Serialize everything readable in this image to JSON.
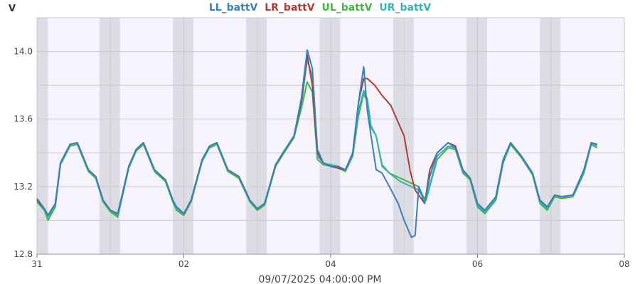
{
  "chart_data": {
    "type": "line",
    "title": "",
    "ylabel": "V",
    "xlabel": "09/07/2025 04:00:00 PM",
    "ylim": [
      12.8,
      14.2
    ],
    "xlim": [
      0,
      8
    ],
    "y_ticks": [
      {
        "v": 12.8,
        "label": "12.8"
      },
      {
        "v": 13.2,
        "label": "13.2"
      },
      {
        "v": 13.6,
        "label": "13.6"
      },
      {
        "v": 14.0,
        "label": "14.0"
      }
    ],
    "x_ticks": [
      {
        "v": 0,
        "label": "31"
      },
      {
        "v": 2,
        "label": "02"
      },
      {
        "v": 4,
        "label": "04"
      },
      {
        "v": 6,
        "label": "06"
      },
      {
        "v": 8,
        "label": "08"
      }
    ],
    "grid": true,
    "legend_position": "top",
    "night_bands": [
      [
        0.0,
        0.15
      ],
      [
        0.85,
        1.13
      ],
      [
        1.85,
        2.13
      ],
      [
        2.85,
        3.13
      ],
      [
        3.85,
        4.13
      ],
      [
        4.85,
        5.13
      ],
      [
        5.85,
        6.13
      ],
      [
        6.85,
        7.13
      ]
    ],
    "series": [
      {
        "name": "LL_battV",
        "color": "#3a7fbf",
        "x": [
          0,
          0.1,
          0.15,
          0.25,
          0.32,
          0.45,
          0.55,
          0.7,
          0.8,
          0.9,
          1.0,
          1.1,
          1.25,
          1.35,
          1.45,
          1.6,
          1.75,
          1.85,
          1.9,
          2.0,
          2.1,
          2.25,
          2.35,
          2.45,
          2.6,
          2.75,
          2.9,
          3.0,
          3.1,
          3.25,
          3.35,
          3.5,
          3.6,
          3.68,
          3.75,
          3.82,
          3.9,
          4.0,
          4.1,
          4.2,
          4.3,
          4.38,
          4.45,
          4.5,
          4.55,
          4.62,
          4.7,
          4.8,
          4.92,
          5.0,
          5.1,
          5.15,
          5.2,
          5.28,
          5.35,
          5.45,
          5.6,
          5.7,
          5.8,
          5.9,
          6.0,
          6.1,
          6.25,
          6.35,
          6.45,
          6.6,
          6.75,
          6.85,
          6.95,
          7.05,
          7.15,
          7.3,
          7.45,
          7.55,
          7.63
        ],
        "y": [
          13.13,
          13.07,
          13.03,
          13.1,
          13.34,
          13.45,
          13.46,
          13.3,
          13.26,
          13.12,
          13.06,
          13.04,
          13.32,
          13.42,
          13.46,
          13.3,
          13.24,
          13.12,
          13.08,
          13.04,
          13.12,
          13.36,
          13.44,
          13.46,
          13.3,
          13.26,
          13.12,
          13.07,
          13.1,
          13.33,
          13.4,
          13.5,
          13.72,
          14.01,
          13.9,
          13.42,
          13.34,
          13.32,
          13.32,
          13.3,
          13.4,
          13.7,
          13.91,
          13.65,
          13.5,
          13.3,
          13.28,
          13.2,
          13.1,
          13.0,
          12.9,
          12.91,
          13.2,
          13.1,
          13.26,
          13.4,
          13.46,
          13.43,
          13.3,
          13.25,
          13.1,
          13.06,
          13.14,
          13.36,
          13.46,
          13.38,
          13.28,
          13.12,
          13.08,
          13.15,
          13.14,
          13.15,
          13.3,
          13.46,
          13.45
        ]
      },
      {
        "name": "LR_battV",
        "color": "#b03a3a",
        "x": [
          0,
          0.1,
          0.15,
          0.25,
          0.32,
          0.45,
          0.55,
          0.7,
          0.8,
          0.9,
          1.0,
          1.1,
          1.25,
          1.35,
          1.45,
          1.6,
          1.75,
          1.85,
          1.9,
          2.0,
          2.1,
          2.25,
          2.35,
          2.45,
          2.6,
          2.75,
          2.9,
          3.0,
          3.1,
          3.25,
          3.35,
          3.5,
          3.6,
          3.68,
          3.75,
          3.82,
          3.9,
          4.0,
          4.1,
          4.2,
          4.3,
          4.38,
          4.45,
          4.5,
          4.6,
          4.7,
          4.82,
          4.92,
          5.0,
          5.08,
          5.15,
          5.2,
          5.28,
          5.35,
          5.45,
          5.6,
          5.7,
          5.8,
          5.9,
          6.0,
          6.1,
          6.25,
          6.35,
          6.45,
          6.6,
          6.75,
          6.85,
          6.95,
          7.05,
          7.15,
          7.3,
          7.45,
          7.55,
          7.63
        ],
        "y": [
          13.12,
          13.07,
          13.03,
          13.1,
          13.34,
          13.45,
          13.46,
          13.3,
          13.26,
          13.12,
          13.06,
          13.04,
          13.32,
          13.42,
          13.46,
          13.3,
          13.24,
          13.12,
          13.08,
          13.04,
          13.12,
          13.36,
          13.44,
          13.46,
          13.3,
          13.26,
          13.12,
          13.07,
          13.1,
          13.33,
          13.4,
          13.5,
          13.7,
          13.98,
          13.8,
          13.4,
          13.34,
          13.32,
          13.31,
          13.3,
          13.4,
          13.7,
          13.84,
          13.84,
          13.8,
          13.74,
          13.68,
          13.58,
          13.5,
          13.3,
          13.18,
          13.15,
          13.1,
          13.3,
          13.4,
          13.46,
          13.44,
          13.3,
          13.25,
          13.1,
          13.06,
          13.14,
          13.36,
          13.46,
          13.38,
          13.28,
          13.12,
          13.08,
          13.15,
          13.14,
          13.15,
          13.3,
          13.46,
          13.45
        ]
      },
      {
        "name": "UL_battV",
        "color": "#3fb93f",
        "x": [
          0,
          0.1,
          0.15,
          0.25,
          0.32,
          0.45,
          0.55,
          0.7,
          0.8,
          0.9,
          1.0,
          1.1,
          1.25,
          1.35,
          1.45,
          1.6,
          1.75,
          1.85,
          1.9,
          2.0,
          2.1,
          2.25,
          2.35,
          2.45,
          2.6,
          2.75,
          2.9,
          3.0,
          3.1,
          3.25,
          3.35,
          3.5,
          3.6,
          3.68,
          3.75,
          3.82,
          3.9,
          4.0,
          4.1,
          4.2,
          4.3,
          4.38,
          4.45,
          4.5,
          4.55,
          4.62,
          4.7,
          4.8,
          4.95,
          5.1,
          5.2,
          5.25,
          5.3,
          5.45,
          5.6,
          5.7,
          5.8,
          5.9,
          6.0,
          6.1,
          6.25,
          6.35,
          6.45,
          6.6,
          6.75,
          6.85,
          6.95,
          7.05,
          7.15,
          7.3,
          7.45,
          7.55,
          7.63
        ],
        "y": [
          13.11,
          13.06,
          13.0,
          13.08,
          13.33,
          13.44,
          13.45,
          13.29,
          13.25,
          13.11,
          13.05,
          13.02,
          13.31,
          13.41,
          13.45,
          13.29,
          13.23,
          13.11,
          13.06,
          13.03,
          13.11,
          13.35,
          13.43,
          13.45,
          13.29,
          13.25,
          13.11,
          13.06,
          13.09,
          13.32,
          13.39,
          13.49,
          13.66,
          13.82,
          13.76,
          13.36,
          13.33,
          13.32,
          13.31,
          13.29,
          13.38,
          13.62,
          13.75,
          13.7,
          13.55,
          13.5,
          13.32,
          13.28,
          13.25,
          13.22,
          13.2,
          13.15,
          13.12,
          13.36,
          13.43,
          13.42,
          13.28,
          13.24,
          13.08,
          13.04,
          13.12,
          13.34,
          13.45,
          13.37,
          13.27,
          13.1,
          13.06,
          13.14,
          13.13,
          13.14,
          13.28,
          13.45,
          13.43
        ]
      },
      {
        "name": "UR_battV",
        "color": "#35b3b3",
        "x": [
          0,
          0.1,
          0.15,
          0.25,
          0.32,
          0.45,
          0.55,
          0.7,
          0.8,
          0.9,
          1.0,
          1.1,
          1.25,
          1.35,
          1.45,
          1.6,
          1.75,
          1.85,
          1.9,
          2.0,
          2.1,
          2.25,
          2.35,
          2.45,
          2.6,
          2.75,
          2.9,
          3.0,
          3.1,
          3.25,
          3.35,
          3.5,
          3.6,
          3.68,
          3.75,
          3.82,
          3.9,
          4.0,
          4.1,
          4.2,
          4.3,
          4.38,
          4.45,
          4.5,
          4.55,
          4.62,
          4.7,
          4.8,
          4.95,
          5.1,
          5.2,
          5.25,
          5.3,
          5.45,
          5.6,
          5.7,
          5.8,
          5.9,
          6.0,
          6.1,
          6.25,
          6.35,
          6.45,
          6.6,
          6.75,
          6.85,
          6.95,
          7.05,
          7.15,
          7.3,
          7.45,
          7.55,
          7.63
        ],
        "y": [
          13.12,
          13.07,
          13.02,
          13.09,
          13.34,
          13.45,
          13.46,
          13.3,
          13.26,
          13.12,
          13.06,
          13.03,
          13.32,
          13.42,
          13.46,
          13.3,
          13.24,
          13.12,
          13.07,
          13.04,
          13.12,
          13.36,
          13.44,
          13.46,
          13.3,
          13.26,
          13.12,
          13.07,
          13.1,
          13.33,
          13.4,
          13.5,
          13.68,
          13.95,
          13.85,
          13.38,
          13.34,
          13.33,
          13.32,
          13.3,
          13.39,
          13.65,
          13.77,
          13.72,
          13.56,
          13.5,
          13.33,
          13.28,
          13.23,
          13.2,
          13.18,
          13.14,
          13.12,
          13.38,
          13.44,
          13.43,
          13.29,
          13.25,
          13.09,
          13.05,
          13.13,
          13.35,
          13.46,
          13.38,
          13.28,
          13.11,
          13.07,
          13.15,
          13.14,
          13.15,
          13.29,
          13.46,
          13.44
        ]
      }
    ]
  }
}
